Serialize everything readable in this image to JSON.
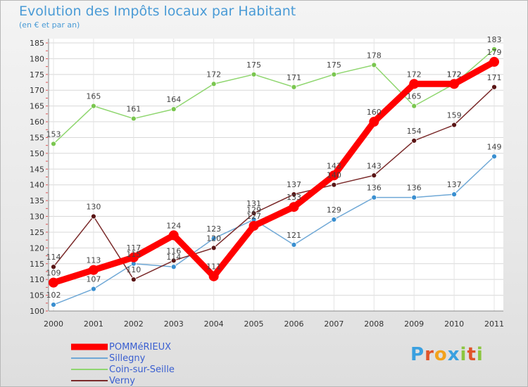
{
  "chart_data": {
    "type": "line",
    "title": "Evolution des Impôts locaux par Habitant",
    "subtitle": "(en € et par an)",
    "x": [
      "2000",
      "2001",
      "2002",
      "2003",
      "2004",
      "2005",
      "2006",
      "2007",
      "2008",
      "2009",
      "2010",
      "2011"
    ],
    "ylim": [
      100,
      185
    ],
    "yticks": [
      100,
      105,
      110,
      115,
      120,
      125,
      130,
      135,
      140,
      145,
      150,
      155,
      160,
      165,
      170,
      175,
      180,
      185
    ],
    "grid": true,
    "series": [
      {
        "name": "POMMéRIEUX",
        "color": "#ff0000",
        "values": [
          109,
          113,
          117,
          124,
          111,
          127,
          133,
          143,
          160,
          172,
          172,
          179
        ],
        "labels": [
          "109",
          "113",
          "117",
          "124",
          "111",
          "127",
          "133",
          "143",
          "160",
          "172",
          "172",
          "179"
        ]
      },
      {
        "name": "Sillegny",
        "color": "#6fa8d6",
        "values": [
          102,
          107,
          115,
          114,
          123,
          129,
          121,
          129,
          136,
          136,
          137,
          149
        ],
        "labels": [
          "102",
          "107",
          "115",
          "114",
          "123",
          "129",
          "121",
          "129",
          "136",
          "136",
          "137",
          "149"
        ]
      },
      {
        "name": "Coin-sur-Seille",
        "color": "#8fd66f",
        "values": [
          153,
          165,
          161,
          164,
          172,
          175,
          171,
          175,
          178,
          165,
          172,
          183
        ],
        "labels": [
          "153",
          "165",
          "161",
          "164",
          "172",
          "175",
          "171",
          "175",
          "178",
          "165",
          "172",
          "183"
        ]
      },
      {
        "name": "Verny",
        "color": "#7a2a2a",
        "values": [
          114,
          130,
          110,
          116,
          120,
          131,
          137,
          140,
          143,
          154,
          159,
          171
        ],
        "labels": [
          "114",
          "130",
          "110",
          "116",
          "120",
          "131",
          "137",
          "140",
          "143",
          "154",
          "159",
          "171"
        ]
      }
    ]
  },
  "logo": {
    "letters": [
      "P",
      "r",
      "o",
      "x",
      "i",
      "t",
      "i"
    ],
    "colors": [
      "#3aa0e0",
      "#e0542a",
      "#f2a21c",
      "#3aa0e0",
      "#8cc63f",
      "#e0542a",
      "#8cc63f"
    ]
  }
}
